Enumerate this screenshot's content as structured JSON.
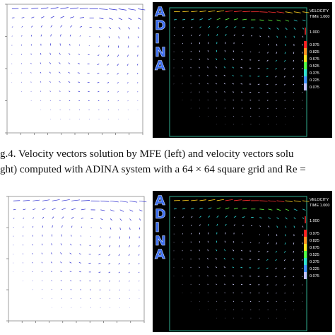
{
  "caption": {
    "lines": [
      "g.4.   Velocity vectors solution by MFE (left) and velocity vectors solu",
      "ght) computed with ADINA system with a 64 × 64 square grid and Re ="
    ]
  },
  "panels": [
    {
      "logo": [
        "A",
        "D",
        "I",
        "N",
        "A"
      ],
      "legend_title": "VELOCITY",
      "time": "TIME 1.000",
      "max": "1.000",
      "scale": [
        "0.975",
        "0.825",
        "0.675",
        "0.525",
        "0.375",
        "0.225",
        "0.075"
      ]
    },
    {
      "logo": [
        "A",
        "D",
        "I",
        "N",
        "A"
      ],
      "legend_title": "VELOCITY",
      "time": "TIME 1.000",
      "max": "1.000",
      "scale": [
        "0.975",
        "0.825",
        "0.675",
        "0.525",
        "0.375",
        "0.225",
        "0.075"
      ]
    }
  ]
}
